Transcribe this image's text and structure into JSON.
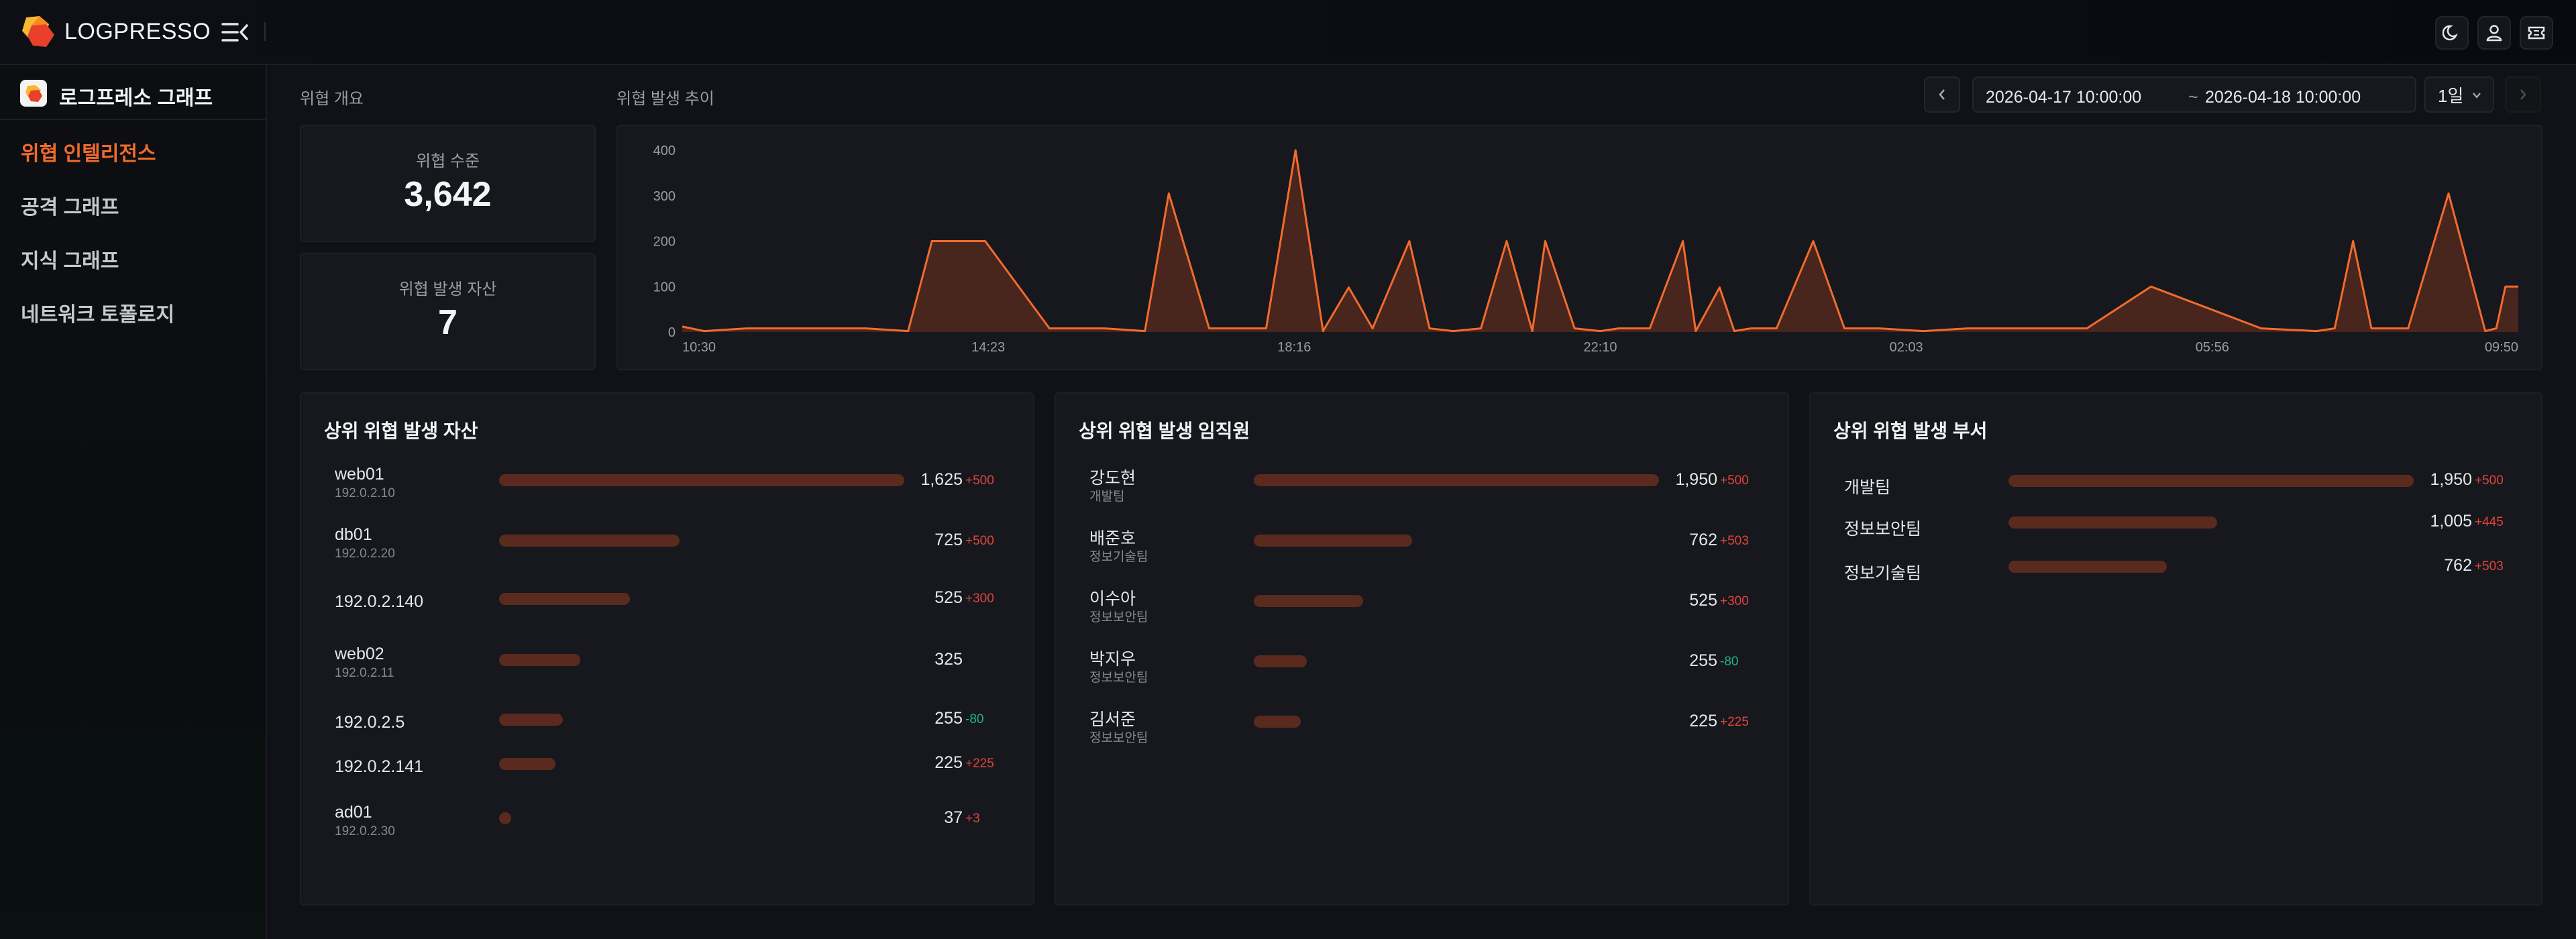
{
  "app": {
    "brand": "LOGPRESSO",
    "logo_icon": "logpresso-logo-icon",
    "accent": "#f26b2c"
  },
  "topbar": {
    "icons": [
      "dark-mode-moon-icon",
      "user-icon",
      "ticket-icon"
    ]
  },
  "sidebar": {
    "title": "로그프레소 그래프",
    "items": [
      {
        "label": "위협 인텔리전스",
        "active": true
      },
      {
        "label": "공격 그래프",
        "active": false
      },
      {
        "label": "지식 그래프",
        "active": false
      },
      {
        "label": "네트워크 토폴로지",
        "active": false
      }
    ]
  },
  "overview": {
    "label": "위협 개요",
    "threat_level_label": "위협 수준",
    "threat_level_value": "3,642",
    "assets_label": "위협 발생 자산",
    "assets_value": "7"
  },
  "trend": {
    "label": "위협 발생 추이",
    "date_start": "2026-04-17 10:00:00",
    "date_sep": "~",
    "date_end": "2026-04-18 10:00:00",
    "period": "1일"
  },
  "chart_data": {
    "type": "area",
    "ylim": [
      0,
      400
    ],
    "y_ticks": [
      "400",
      "300",
      "200",
      "100",
      "0"
    ],
    "x_ticks": [
      "10:30",
      "14:23",
      "18:16",
      "22:10",
      "02:03",
      "05:56",
      "09:50"
    ],
    "x": [
      0,
      0.012,
      0.035,
      0.06,
      0.1,
      0.123,
      0.136,
      0.165,
      0.2,
      0.23,
      0.252,
      0.265,
      0.287,
      0.318,
      0.334,
      0.349,
      0.363,
      0.376,
      0.396,
      0.407,
      0.42,
      0.435,
      0.449,
      0.463,
      0.47,
      0.486,
      0.5,
      0.51,
      0.527,
      0.545,
      0.552,
      0.565,
      0.573,
      0.582,
      0.596,
      0.616,
      0.633,
      0.652,
      0.676,
      0.7,
      0.765,
      0.8,
      0.86,
      0.89,
      0.9,
      0.91,
      0.92,
      0.94,
      0.962,
      0.982,
      0.988,
      0.993,
      1
    ],
    "values": [
      12,
      2,
      8,
      8,
      8,
      2,
      200,
      200,
      8,
      8,
      2,
      305,
      8,
      8,
      400,
      2,
      98,
      8,
      200,
      8,
      2,
      8,
      200,
      2,
      200,
      8,
      2,
      8,
      8,
      200,
      2,
      98,
      2,
      8,
      8,
      200,
      8,
      8,
      2,
      8,
      8,
      100,
      8,
      2,
      8,
      200,
      8,
      8,
      305,
      2,
      8,
      100,
      100
    ],
    "stroke": "#f26b2c",
    "fill": "#5a2a1e"
  },
  "panels": [
    {
      "title": "상위 위협 발생 자산",
      "rows": [
        {
          "name": "web01",
          "sub": "192.0.2.10",
          "value": "1,625",
          "num": 1625,
          "delta": "+500",
          "dir": "up"
        },
        {
          "name": "db01",
          "sub": "192.0.2.20",
          "value": "725",
          "num": 725,
          "delta": "+500",
          "dir": "up"
        },
        {
          "name": "192.0.2.140",
          "sub": "",
          "value": "525",
          "num": 525,
          "delta": "+300",
          "dir": "up"
        },
        {
          "name": "web02",
          "sub": "192.0.2.11",
          "value": "325",
          "num": 325,
          "delta": "",
          "dir": "none"
        },
        {
          "name": "192.0.2.5",
          "sub": "",
          "value": "255",
          "num": 255,
          "delta": "-80",
          "dir": "down"
        },
        {
          "name": "192.0.2.141",
          "sub": "",
          "value": "225",
          "num": 225,
          "delta": "+225",
          "dir": "up"
        },
        {
          "name": "ad01",
          "sub": "192.0.2.30",
          "value": "37",
          "num": 37,
          "delta": "+3",
          "dir": "up"
        }
      ],
      "max": 1625
    },
    {
      "title": "상위 위협 발생 임직원",
      "rows": [
        {
          "name": "강도현",
          "sub": "개발팀",
          "value": "1,950",
          "num": 1950,
          "delta": "+500",
          "dir": "up"
        },
        {
          "name": "배준호",
          "sub": "정보기술팀",
          "value": "762",
          "num": 762,
          "delta": "+503",
          "dir": "up"
        },
        {
          "name": "이수아",
          "sub": "정보보안팀",
          "value": "525",
          "num": 525,
          "delta": "+300",
          "dir": "up"
        },
        {
          "name": "박지우",
          "sub": "정보보안팀",
          "value": "255",
          "num": 255,
          "delta": "-80",
          "dir": "down"
        },
        {
          "name": "김서준",
          "sub": "정보보안팀",
          "value": "225",
          "num": 225,
          "delta": "+225",
          "dir": "up"
        }
      ],
      "max": 1950
    },
    {
      "title": "상위 위협 발생 부서",
      "rows": [
        {
          "name": "개발팀",
          "sub": "",
          "value": "1,950",
          "num": 1950,
          "delta": "+500",
          "dir": "up"
        },
        {
          "name": "정보보안팀",
          "sub": "",
          "value": "1,005",
          "num": 1005,
          "delta": "+445",
          "dir": "up"
        },
        {
          "name": "정보기술팀",
          "sub": "",
          "value": "762",
          "num": 762,
          "delta": "+503",
          "dir": "up"
        }
      ],
      "max": 1950
    }
  ]
}
